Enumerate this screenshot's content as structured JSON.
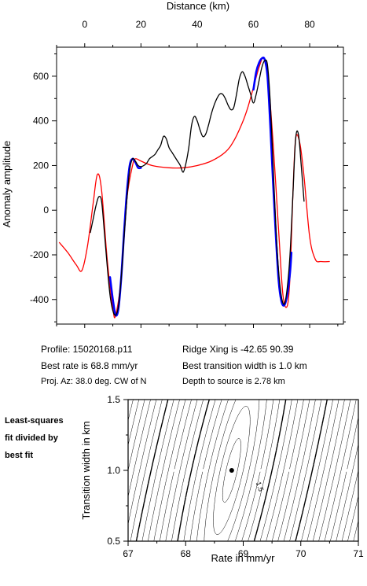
{
  "chart_data": [
    {
      "type": "line",
      "title": "",
      "xlabel": "Distance (km)",
      "ylabel": "Anomaly amplitude",
      "x_axis_position": "top",
      "xlim": [
        -10,
        92
      ],
      "ylim": [
        -510,
        730
      ],
      "x_ticks": [
        0,
        20,
        40,
        60,
        80
      ],
      "y_ticks": [
        -400,
        -200,
        0,
        200,
        400,
        600
      ],
      "grid": false,
      "series": [
        {
          "color": "#ff0000",
          "style": "model",
          "x": [
            -9,
            -6,
            -3,
            -1,
            1,
            3,
            4.5,
            6,
            8,
            10,
            11,
            13,
            15,
            17,
            18,
            20,
            24,
            30,
            35,
            40,
            45,
            50,
            53,
            56,
            58,
            60,
            62,
            63.5,
            65,
            67,
            69,
            70.5,
            72,
            73,
            74,
            75,
            76.5,
            78,
            80,
            82,
            84,
            87
          ],
          "y": [
            -145,
            -190,
            -245,
            -270,
            -160,
            30,
            160,
            90,
            -220,
            -440,
            -470,
            -300,
            50,
            200,
            230,
            220,
            200,
            190,
            190,
            200,
            220,
            260,
            310,
            390,
            460,
            550,
            640,
            680,
            620,
            300,
            -100,
            -380,
            -430,
            -300,
            60,
            320,
            300,
            150,
            -120,
            -220,
            -230,
            -230
          ]
        },
        {
          "color": "#0000ff",
          "style": "fit",
          "segments": [
            {
              "x": [
                9,
                10,
                11,
                12,
                13,
                14,
                15,
                16,
                17,
                18,
                19,
                20
              ],
              "y": [
                -300,
                -400,
                -470,
                -440,
                -300,
                -100,
                80,
                200,
                230,
                215,
                190,
                190
              ]
            },
            {
              "x": [
                60,
                61,
                62,
                63,
                64,
                65,
                66,
                67,
                68,
                69,
                70,
                71,
                72,
                73,
                73.5
              ],
              "y": [
                540,
                620,
                660,
                680,
                675,
                600,
                380,
                120,
                -120,
                -320,
                -410,
                -425,
                -380,
                -280,
                -190
              ]
            }
          ]
        },
        {
          "color": "#000000",
          "style": "observed",
          "x": [
            2,
            3,
            4,
            5,
            6,
            7,
            8,
            9,
            10,
            11,
            12,
            13,
            14,
            15,
            16,
            17,
            18,
            19,
            20,
            21,
            22,
            23,
            24,
            25,
            26,
            27,
            28,
            29,
            30,
            31,
            32,
            33,
            34,
            35,
            36,
            37,
            38,
            39,
            40,
            41,
            42,
            43,
            44,
            45,
            46,
            47,
            48,
            49,
            50,
            51,
            52,
            53,
            54,
            55,
            56,
            57,
            58,
            59,
            60,
            61,
            62,
            63,
            64,
            65,
            66,
            67,
            68,
            69,
            70,
            71,
            72,
            73,
            74,
            75,
            76,
            77,
            78
          ],
          "y": [
            -100,
            -40,
            20,
            60,
            40,
            -100,
            -250,
            -380,
            -450,
            -470,
            -430,
            -300,
            -120,
            50,
            180,
            230,
            220,
            200,
            195,
            200,
            210,
            230,
            240,
            250,
            270,
            290,
            330,
            320,
            280,
            260,
            240,
            220,
            200,
            170,
            210,
            280,
            380,
            420,
            400,
            360,
            330,
            340,
            380,
            430,
            470,
            500,
            520,
            520,
            500,
            470,
            450,
            460,
            520,
            590,
            620,
            600,
            560,
            520,
            480,
            520,
            580,
            640,
            670,
            650,
            480,
            200,
            -80,
            -280,
            -390,
            -420,
            -350,
            -200,
            60,
            320,
            340,
            200,
            40
          ]
        }
      ]
    },
    {
      "type": "contour",
      "title": "",
      "xlabel": "Rate in mm/yr",
      "ylabel": "Transition width in km",
      "xlim": [
        67,
        71
      ],
      "ylim": [
        0.5,
        1.5
      ],
      "x_ticks": [
        67,
        68,
        69,
        70,
        71
      ],
      "y_ticks": [
        0.5,
        1.0,
        1.5
      ],
      "best_fit_point": [
        68.8,
        1.0
      ],
      "contour_labels": [
        {
          "text": "1.5",
          "x": 69.25,
          "y": 0.88
        }
      ],
      "grid": false
    }
  ],
  "info": {
    "profile": "Profile: 15020168.p11",
    "ridge_xing": "Ridge Xing is -42.65 90.39",
    "best_rate": "Best rate is 68.8 mm/yr",
    "best_transition": "Best transition width is 1.0 km",
    "proj_az": "Proj. Az: 38.0 deg. CW of N",
    "depth": "Depth to source is   2.78 km"
  },
  "side_label": [
    "Least-squares",
    "fit divided by",
    "best fit"
  ]
}
